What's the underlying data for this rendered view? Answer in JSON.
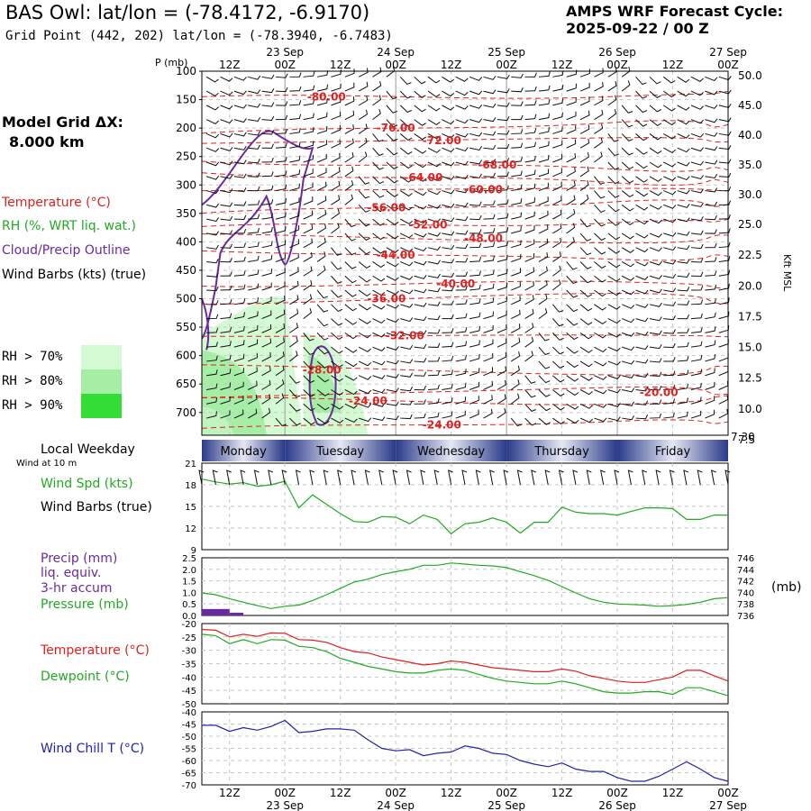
{
  "header": {
    "title": "BAS Owl:  lat/lon = (-78.4172, -6.9170)",
    "subtitle": "Grid Point (442, 202) lat/lon = (-78.3940, -6.7483)",
    "cycle_line1": "AMPS WRF Forecast Cycle:",
    "cycle_line2": "2025-09-22 / 00  Z",
    "grid_line1": "Model Grid ΔX:",
    "grid_line2": "8.000 km"
  },
  "legend": {
    "temperature": "Temperature (°C)",
    "rh": "RH (%, WRT liq. wat.)",
    "cloud": "Cloud/Precip Outline",
    "wind": "Wind Barbs (kts) (true)",
    "rh70": "RH > 70%",
    "rh80": "RH > 80%",
    "rh90": "RH > 90%",
    "colors": {
      "rh70": "#d4fad4",
      "rh80": "#a6eea6",
      "rh90": "#33dd33"
    }
  },
  "time_axis": {
    "top_ticks": [
      "12Z",
      "00Z",
      "12Z",
      "00Z",
      "12Z",
      "00Z",
      "12Z",
      "00Z",
      "12Z",
      "00Z"
    ],
    "top_dates": [
      "23 Sep",
      "24 Sep",
      "25 Sep",
      "26 Sep",
      "27 Sep"
    ],
    "bottom_ticks": [
      "12Z",
      "00Z",
      "12Z",
      "00Z",
      "12Z",
      "00Z",
      "12Z",
      "00Z",
      "12Z",
      "00Z"
    ],
    "bottom_dates": [
      "23 Sep",
      "24 Sep",
      "25 Sep",
      "26 Sep",
      "27 Sep"
    ]
  },
  "day_bar": {
    "caption": "Local Weekday",
    "days": [
      "Monday",
      "Tuesday",
      "Wednesday",
      "Thursday",
      "Friday"
    ]
  },
  "panel_labels": {
    "wind10": "Wind at 10 m",
    "wspd": "Wind Spd (kts)",
    "wbarbs": "Wind Barbs (true)",
    "precip1": "Precip (mm)",
    "precip2": "liq. equiv.",
    "precip3": "3-hr accum",
    "pressure": "Pressure (mb)",
    "press_unit": "(mb)",
    "temp": "Temperature (°C)",
    "dew": "Dewpoint (°C)",
    "wchill": "Wind Chill T (°C)"
  },
  "chart_data": [
    {
      "type": "heatmap",
      "id": "profile",
      "ylabel": "P (mb)",
      "y2label": "Kft MSL",
      "ylim": [
        740,
        100
      ],
      "y_ticks": [
        100,
        150,
        200,
        250,
        300,
        350,
        400,
        450,
        500,
        550,
        600,
        650,
        700
      ],
      "kft_labels": [
        "50.0",
        "45.0",
        "40.0",
        "35.0",
        "30.0",
        "25.0",
        "22.5",
        "20.0",
        "17.5",
        "15.0",
        "12.5",
        "10.0",
        "7.5"
      ],
      "kft_bottom": "7.30",
      "xlim_hours": [
        6,
        120
      ],
      "temperature_labels": [
        {
          "text": "-80.00",
          "h": 33,
          "p": 145
        },
        {
          "text": "-76.00",
          "h": 48,
          "p": 200
        },
        {
          "text": "-72.00",
          "h": 58,
          "p": 222
        },
        {
          "text": "-68.00",
          "h": 70,
          "p": 265
        },
        {
          "text": "-64.00",
          "h": 54,
          "p": 287
        },
        {
          "text": "-60.00",
          "h": 67,
          "p": 308
        },
        {
          "text": "-56.00",
          "h": 46,
          "p": 340
        },
        {
          "text": "-52.00",
          "h": 55,
          "p": 370
        },
        {
          "text": "-48.00",
          "h": 67,
          "p": 394
        },
        {
          "text": "-44.00",
          "h": 48,
          "p": 423
        },
        {
          "text": "-40.00",
          "h": 61,
          "p": 474
        },
        {
          "text": "-36.00",
          "h": 46,
          "p": 500
        },
        {
          "text": "-32.00",
          "h": 50,
          "p": 565
        },
        {
          "text": "-28.00",
          "h": 32,
          "p": 625
        },
        {
          "text": "-24.00",
          "h": 42,
          "p": 680
        },
        {
          "text": "-24.00",
          "h": 58,
          "p": 722
        },
        {
          "text": "-20.00",
          "h": 105,
          "p": 665
        }
      ]
    },
    {
      "type": "line",
      "id": "wind_speed",
      "ylim": [
        9,
        21
      ],
      "y_ticks": [
        9,
        12,
        15,
        18,
        21
      ],
      "x_hours": [
        6,
        9,
        12,
        15,
        18,
        21,
        24,
        27,
        30,
        33,
        36,
        39,
        42,
        45,
        48,
        51,
        54,
        57,
        60,
        63,
        66,
        69,
        72,
        75,
        78,
        81,
        84,
        87,
        90,
        93,
        96,
        99,
        102,
        105,
        108,
        111,
        114,
        117,
        120
      ],
      "series": [
        {
          "color": "#22aa22",
          "values": [
            18.8,
            18.4,
            18.1,
            18.3,
            17.8,
            18.0,
            18.5,
            14.8,
            16.6,
            15.3,
            14.0,
            12.9,
            12.8,
            13.6,
            13.5,
            12.6,
            13.8,
            13.2,
            11.2,
            12.6,
            12.8,
            13.4,
            12.8,
            11.3,
            12.8,
            12.8,
            14.9,
            14.2,
            14.0,
            14.0,
            13.8,
            14.3,
            14.8,
            14.8,
            14.7,
            13.2,
            13.2,
            13.8,
            13.8
          ]
        }
      ]
    },
    {
      "type": "line",
      "id": "precip_pressure",
      "ylim": [
        0,
        2.5
      ],
      "y_ticks": [
        0.0,
        0.5,
        1.0,
        1.5,
        2.0,
        2.5
      ],
      "y2lim": [
        736,
        746
      ],
      "y2_ticks": [
        736,
        738,
        740,
        742,
        744,
        746
      ],
      "x_hours": [
        6,
        9,
        12,
        15,
        18,
        21,
        24,
        27,
        30,
        33,
        36,
        39,
        42,
        45,
        48,
        51,
        54,
        57,
        60,
        63,
        66,
        69,
        72,
        75,
        78,
        81,
        84,
        87,
        90,
        93,
        96,
        99,
        102,
        105,
        108,
        111,
        114,
        117,
        120
      ],
      "series": [
        {
          "name": "Pressure (mb)",
          "color": "#22aa22",
          "values": [
            739.9,
            739.6,
            738.9,
            738.3,
            737.7,
            737.2,
            737.6,
            737.8,
            738.6,
            739.6,
            740.7,
            741.8,
            742.3,
            743.1,
            743.6,
            744.0,
            744.7,
            744.7,
            745.1,
            744.9,
            744.7,
            744.6,
            744.3,
            743.6,
            742.9,
            742.1,
            741.0,
            739.9,
            738.9,
            738.3,
            738.0,
            737.9,
            737.8,
            737.6,
            737.7,
            737.9,
            738.3,
            738.9,
            739.1
          ]
        },
        {
          "name": "Precip (mm)",
          "color": "#6a2aa0",
          "bars": [
            {
              "h0": 6,
              "h1": 12,
              "v": 0.28
            },
            {
              "h0": 12,
              "h1": 15,
              "v": 0.12
            }
          ]
        }
      ]
    },
    {
      "type": "line",
      "id": "temperature",
      "ylim": [
        -50,
        -20
      ],
      "y_ticks": [
        -20,
        -25,
        -30,
        -35,
        -40,
        -45,
        -50
      ],
      "x_hours": [
        6,
        9,
        12,
        15,
        18,
        21,
        24,
        27,
        30,
        33,
        36,
        39,
        42,
        45,
        48,
        51,
        54,
        57,
        60,
        63,
        66,
        69,
        72,
        75,
        78,
        81,
        84,
        87,
        90,
        93,
        96,
        99,
        102,
        105,
        108,
        111,
        114,
        117,
        120
      ],
      "series": [
        {
          "name": "Temperature (°C)",
          "color": "#dd2222",
          "values": [
            -22.2,
            -22.5,
            -25.0,
            -24.0,
            -24.8,
            -23.5,
            -23.6,
            -26.0,
            -26.2,
            -27.0,
            -29.0,
            -30.5,
            -31.0,
            -32.5,
            -33.5,
            -34.5,
            -35.5,
            -35.0,
            -34.0,
            -34.5,
            -35.5,
            -36.5,
            -37.0,
            -37.5,
            -38.0,
            -38.0,
            -37.0,
            -37.8,
            -39.5,
            -40.5,
            -41.5,
            -42.0,
            -42.0,
            -41.0,
            -40.0,
            -37.5,
            -37.5,
            -39.5,
            -41.5
          ]
        },
        {
          "name": "Dewpoint (°C)",
          "color": "#22aa22",
          "values": [
            -24.0,
            -24.5,
            -27.5,
            -26.0,
            -27.5,
            -26.0,
            -26.2,
            -28.5,
            -29.0,
            -30.5,
            -33.0,
            -34.5,
            -36.0,
            -37.0,
            -38.0,
            -38.5,
            -38.5,
            -37.5,
            -37.0,
            -37.5,
            -39.0,
            -40.5,
            -41.5,
            -42.0,
            -42.5,
            -42.5,
            -41.5,
            -42.5,
            -44.0,
            -45.5,
            -46.0,
            -46.0,
            -45.5,
            -45.5,
            -46.5,
            -44.0,
            -44.0,
            -45.5,
            -47.0
          ]
        }
      ]
    },
    {
      "type": "line",
      "id": "wind_chill",
      "ylim": [
        -70,
        -40
      ],
      "y_ticks": [
        -40,
        -45,
        -50,
        -55,
        -60,
        -65,
        -70
      ],
      "x_hours": [
        6,
        9,
        12,
        15,
        18,
        21,
        24,
        27,
        30,
        33,
        36,
        39,
        42,
        45,
        48,
        51,
        54,
        57,
        60,
        63,
        66,
        69,
        72,
        75,
        78,
        81,
        84,
        87,
        90,
        93,
        96,
        99,
        102,
        105,
        108,
        111,
        114,
        117,
        120
      ],
      "series": [
        {
          "name": "Wind Chill T (°C)",
          "color": "#2222aa",
          "values": [
            -45.5,
            -45.5,
            -48.0,
            -46.5,
            -47.5,
            -46.0,
            -43.5,
            -48.5,
            -48.0,
            -47.0,
            -47.0,
            -47.5,
            -51.5,
            -55.0,
            -56.0,
            -55.5,
            -58.0,
            -57.0,
            -56.5,
            -54.0,
            -55.0,
            -57.0,
            -57.5,
            -60.0,
            -61.5,
            -62.5,
            -61.0,
            -63.5,
            -64.5,
            -64.5,
            -67.0,
            -68.5,
            -68.5,
            -66.5,
            -63.5,
            -60.5,
            -63.5,
            -67.0,
            -68.5
          ]
        }
      ]
    }
  ]
}
